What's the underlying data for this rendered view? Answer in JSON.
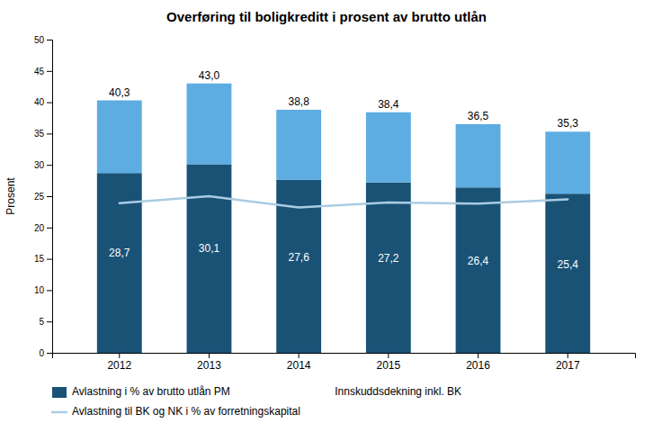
{
  "chart_data": {
    "type": "bar",
    "stacked": true,
    "title": "Overføring til boligkreditt i prosent av brutto utlån",
    "ylabel": "Prosent",
    "categories": [
      "2012",
      "2013",
      "2014",
      "2015",
      "2016",
      "2017"
    ],
    "series": [
      {
        "name": "Avlastning i % av brutto utlån PM",
        "type": "bar",
        "color": "#1a5276",
        "values": [
          28.7,
          30.1,
          27.6,
          27.2,
          26.4,
          25.4
        ],
        "value_labels": [
          "28,7",
          "30,1",
          "27,6",
          "27,2",
          "26,4",
          "25,4"
        ]
      },
      {
        "type": "bar",
        "color": "#5dade2",
        "values": [
          11.6,
          12.9,
          11.2,
          11.2,
          10.1,
          9.9
        ]
      },
      {
        "name": "Avlastning til BK og NK i % av forretningskapital",
        "type": "line",
        "color": "#a9cce3",
        "values": [
          23.9,
          25.0,
          23.2,
          24.0,
          23.8,
          24.5
        ]
      }
    ],
    "totals": [
      40.3,
      43.0,
      38.8,
      38.4,
      36.5,
      35.3
    ],
    "total_labels": [
      "40,3",
      "43,0",
      "38,8",
      "38,4",
      "36,5",
      "35,3"
    ],
    "data_labels": true,
    "annotations": [
      "Innskuddsdekning inkl. BK"
    ],
    "ylim": [
      0,
      50
    ],
    "yticks": [
      0,
      5,
      10,
      15,
      20,
      25,
      30,
      35,
      40,
      45,
      50
    ],
    "grid": false
  }
}
